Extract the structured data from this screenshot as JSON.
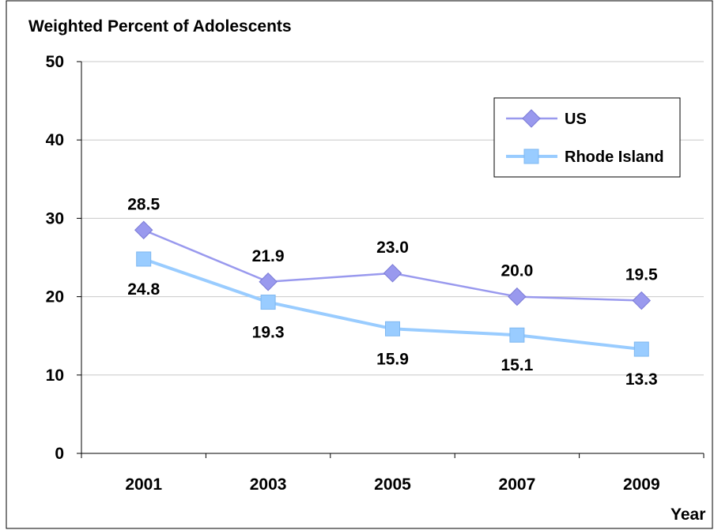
{
  "chart_data": {
    "type": "line",
    "title": "Weighted Percent of Adolescents",
    "xlabel": "Year",
    "ylabel": "",
    "categories": [
      "2001",
      "2003",
      "2005",
      "2007",
      "2009"
    ],
    "ylim": [
      0,
      50
    ],
    "yticks": [
      "0",
      "10",
      "20",
      "30",
      "40",
      "50"
    ],
    "grid": true,
    "legend_position": "top-right",
    "series": [
      {
        "name": "US",
        "values": [
          28.5,
          21.9,
          23.0,
          20.0,
          19.5
        ],
        "labels": [
          "28.5",
          "21.9",
          "23.0",
          "20.0",
          "19.5"
        ],
        "label_placement": "above",
        "marker": "diamond",
        "color": "#9999ee"
      },
      {
        "name": "Rhode Island",
        "values": [
          24.8,
          19.3,
          15.9,
          15.1,
          13.3
        ],
        "labels": [
          "24.8",
          "19.3",
          "15.9",
          "15.1",
          "13.3"
        ],
        "label_placement": "below",
        "marker": "square",
        "color": "#99ccff"
      }
    ]
  }
}
